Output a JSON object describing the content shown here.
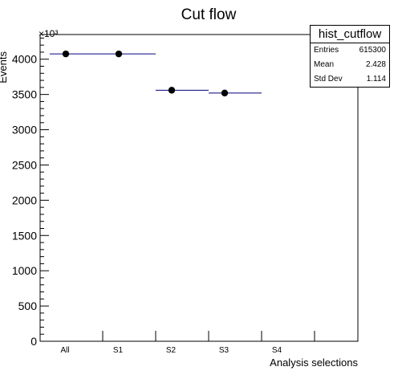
{
  "chart_data": {
    "type": "scatter",
    "title": "Cut flow",
    "xlabel": "Analysis selections",
    "ylabel": "Events",
    "yscale_label": "×10³",
    "categories": [
      "All",
      "S1",
      "S2",
      "S3",
      "S4",
      ""
    ],
    "values": [
      4075,
      4075,
      3560,
      3520,
      null,
      null
    ],
    "ylim": [
      0,
      4350
    ],
    "yticks": [
      0,
      500,
      1000,
      1500,
      2000,
      2500,
      3000,
      3500,
      4000
    ],
    "grid": false,
    "marker_color": "#000000",
    "errorbar_color": "#000080"
  },
  "stats": {
    "title": "hist_cutflow",
    "rows": [
      {
        "label": "Entries",
        "value": "615300"
      },
      {
        "label": "Mean",
        "value": "2.428"
      },
      {
        "label": "Std Dev",
        "value": "1.114"
      }
    ]
  }
}
